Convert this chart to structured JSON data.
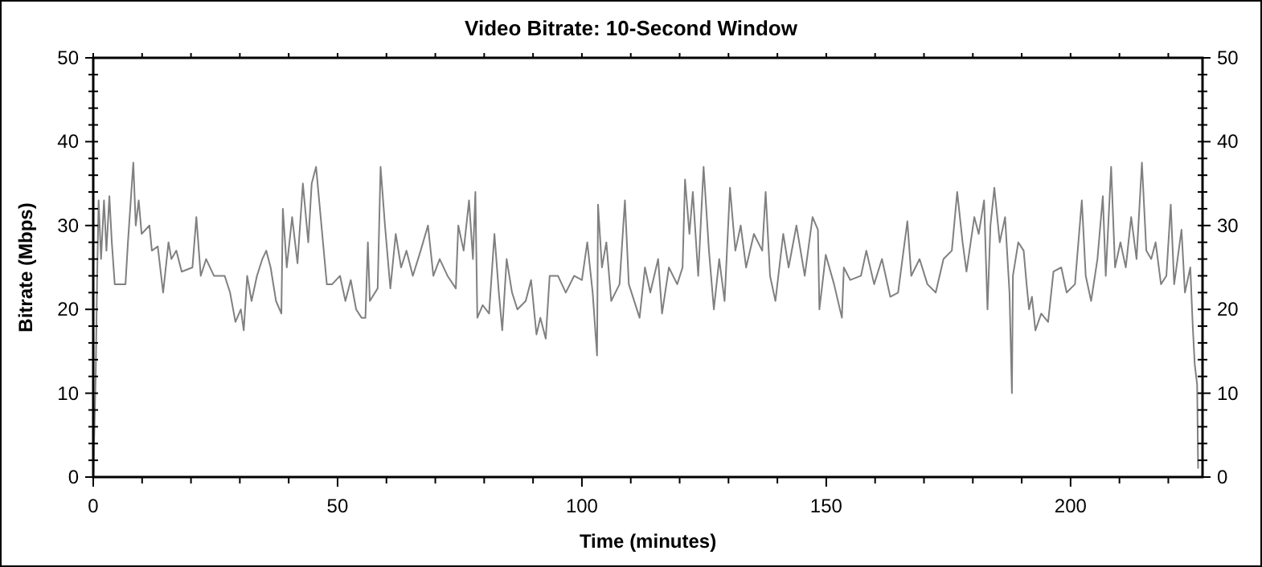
{
  "chart_data": {
    "type": "line",
    "title": "Video Bitrate: 10-Second Window",
    "xlabel": "Time (minutes)",
    "ylabel": "Bitrate (Mbps)",
    "x": [
      0,
      0.5,
      0.8,
      1.1,
      1.6,
      2.2,
      2.7,
      3.3,
      3.8,
      4.4,
      6.6,
      7.1,
      8.2,
      8.7,
      9.3,
      9.9,
      11.5,
      12,
      13.2,
      14.3,
      15.4,
      16,
      17,
      18.1,
      20.3,
      21.1,
      22,
      23.1,
      24.7,
      26.9,
      28,
      29.1,
      30.2,
      30.8,
      31.5,
      32.4,
      33.5,
      34.6,
      35.4,
      36.3,
      37.4,
      38.5,
      38.8,
      39.6,
      40.7,
      41.8,
      42.9,
      44,
      44.7,
      45.6,
      46.7,
      47.8,
      48.9,
      50.5,
      51.6,
      52.7,
      53.8,
      54.9,
      55.7,
      56.2,
      56.6,
      58.2,
      58.8,
      59.7,
      60.8,
      61.9,
      63,
      64.1,
      65.4,
      67,
      68.5,
      69.6,
      70.9,
      72.5,
      74.2,
      74.7,
      75.8,
      76.9,
      77.7,
      78.2,
      78.6,
      79.7,
      81,
      82.1,
      83,
      83.7,
      84.6,
      85.7,
      86.8,
      88.5,
      89.6,
      90.7,
      91.5,
      92.6,
      93.4,
      95.1,
      96.7,
      98.4,
      100,
      101.1,
      102.2,
      103.1,
      103.3,
      104.1,
      105,
      106,
      107.7,
      108.8,
      109.6,
      111.8,
      112.9,
      114,
      115.6,
      116.4,
      117.8,
      119.5,
      120.6,
      121.1,
      122,
      122.7,
      123.8,
      124.9,
      126,
      127,
      128.1,
      129.2,
      130.3,
      131.4,
      132.5,
      133.6,
      135.2,
      136.9,
      137.6,
      138.5,
      139.6,
      141.2,
      142.3,
      143.9,
      145.6,
      147.2,
      148.3,
      148.6,
      149.9,
      151.6,
      153.2,
      153.6,
      154.9,
      157.1,
      158.2,
      159.8,
      161.4,
      163.1,
      164.7,
      166.6,
      167.4,
      169.1,
      170.7,
      172.4,
      174,
      175.7,
      176.8,
      177.9,
      178.7,
      180.3,
      181.2,
      182.3,
      183,
      183.6,
      184.4,
      185.5,
      186.6,
      187.5,
      188,
      188.2,
      189.3,
      190.4,
      191,
      191.5,
      192.1,
      192.8,
      194,
      195.4,
      196.5,
      198.1,
      199.2,
      200.9,
      202.3,
      203.1,
      204.2,
      205.5,
      206.6,
      207.2,
      208.3,
      209.1,
      210.2,
      211.3,
      212.4,
      213.5,
      214.6,
      215.5,
      216.5,
      217.4,
      218.5,
      219.6,
      220.5,
      221.2,
      222.7,
      223.4,
      224.5,
      225,
      225.4,
      225.9,
      226.1
    ],
    "series": [
      {
        "color": "#808080",
        "values": [
          0,
          12,
          24,
          33,
          26,
          33,
          27,
          33.5,
          28,
          23,
          23,
          28,
          37.5,
          30,
          33,
          29,
          30,
          27,
          27.5,
          22,
          28,
          26,
          27,
          24.5,
          25,
          31,
          24,
          26,
          24,
          24,
          22,
          18.5,
          20,
          17.5,
          24,
          21,
          24,
          26,
          27,
          25,
          21,
          19.5,
          32,
          25,
          31,
          25.5,
          35,
          28,
          35,
          37,
          30,
          23,
          23,
          24,
          21,
          23.5,
          20,
          19,
          19,
          28,
          21,
          22.5,
          37,
          30,
          22.5,
          29,
          25,
          27,
          24,
          27,
          30,
          24,
          26,
          24,
          22.5,
          30,
          27,
          33,
          26,
          34,
          19,
          20.5,
          19.5,
          29,
          22,
          17.5,
          26,
          22,
          20,
          21,
          23.5,
          17,
          19,
          16.5,
          24,
          24,
          22,
          24,
          23.5,
          28,
          22,
          14.5,
          32.5,
          25,
          28,
          21,
          23,
          33,
          23,
          19,
          25,
          22,
          26,
          19.5,
          25,
          23,
          25,
          35.5,
          29,
          34,
          24,
          37,
          27,
          20,
          26,
          21,
          34.5,
          27,
          30,
          25,
          29,
          27,
          34,
          24,
          21,
          29,
          25,
          30,
          24,
          31,
          29.5,
          20,
          26.5,
          23,
          19,
          25,
          23.5,
          24,
          27,
          23,
          26,
          21.5,
          22,
          30.5,
          24,
          26,
          23,
          22,
          26,
          27,
          34,
          28,
          24.5,
          31,
          29,
          33,
          20,
          30,
          34.5,
          28,
          31,
          22,
          10,
          24,
          28,
          27,
          23,
          20,
          21.5,
          17.5,
          19.5,
          18.5,
          24.5,
          25,
          22,
          23,
          33,
          24,
          21,
          26,
          33.5,
          24,
          37,
          25,
          28,
          25,
          31,
          26,
          37.5,
          27,
          26,
          28,
          23,
          24,
          32.5,
          23,
          29.5,
          22,
          25,
          18,
          13.5,
          11,
          1
        ]
      }
    ],
    "xlim": [
      0,
      227
    ],
    "xticks": [
      0,
      {
        "value": 10,
        "label": null
      },
      {
        "value": 20,
        "label": null
      },
      {
        "value": 30,
        "label": null
      },
      {
        "value": 40,
        "label": null
      },
      50,
      {
        "value": 60,
        "label": null
      },
      {
        "value": 70,
        "label": null
      },
      {
        "value": 80,
        "label": null
      },
      {
        "value": 90,
        "label": null
      },
      100,
      {
        "value": 110,
        "label": null
      },
      {
        "value": 120,
        "label": null
      },
      {
        "value": 130,
        "label": null
      },
      {
        "value": 140,
        "label": null
      },
      150,
      {
        "value": 160,
        "label": null
      },
      {
        "value": 170,
        "label": null
      },
      {
        "value": 180,
        "label": null
      },
      {
        "value": 190,
        "label": null
      },
      200,
      {
        "value": 210,
        "label": null
      },
      {
        "value": 220,
        "label": null
      }
    ],
    "ylim": [
      0,
      50
    ],
    "yticks": [
      0,
      {
        "value": 2,
        "label": null
      },
      {
        "value": 4,
        "label": null
      },
      {
        "value": 6,
        "label": null
      },
      {
        "value": 8,
        "label": null
      },
      10,
      {
        "value": 12,
        "label": null
      },
      {
        "value": 14,
        "label": null
      },
      {
        "value": 16,
        "label": null
      },
      {
        "value": 18,
        "label": null
      },
      20,
      {
        "value": 22,
        "label": null
      },
      {
        "value": 24,
        "label": null
      },
      {
        "value": 26,
        "label": null
      },
      {
        "value": 28,
        "label": null
      },
      30,
      {
        "value": 32,
        "label": null
      },
      {
        "value": 34,
        "label": null
      },
      {
        "value": 36,
        "label": null
      },
      {
        "value": 38,
        "label": null
      },
      40,
      {
        "value": 42,
        "label": null
      },
      {
        "value": 44,
        "label": null
      },
      {
        "value": 46,
        "label": null
      },
      {
        "value": 48,
        "label": null
      },
      50
    ],
    "y2lim": [
      0,
      50
    ],
    "y2ticks": [
      0,
      {
        "value": 2,
        "label": null
      },
      {
        "value": 4,
        "label": null
      },
      {
        "value": 6,
        "label": null
      },
      {
        "value": 8,
        "label": null
      },
      10,
      {
        "value": 12,
        "label": null
      },
      {
        "value": 14,
        "label": null
      },
      {
        "value": 16,
        "label": null
      },
      {
        "value": 18,
        "label": null
      },
      20,
      {
        "value": 22,
        "label": null
      },
      {
        "value": 24,
        "label": null
      },
      {
        "value": 26,
        "label": null
      },
      {
        "value": 28,
        "label": null
      },
      30,
      {
        "value": 32,
        "label": null
      },
      {
        "value": 34,
        "label": null
      },
      {
        "value": 36,
        "label": null
      },
      {
        "value": 38,
        "label": null
      },
      40,
      {
        "value": 42,
        "label": null
      },
      {
        "value": 44,
        "label": null
      },
      {
        "value": 46,
        "label": null
      },
      {
        "value": 48,
        "label": null
      },
      50
    ],
    "grid": false,
    "marker": "none",
    "line_style": "solid"
  }
}
